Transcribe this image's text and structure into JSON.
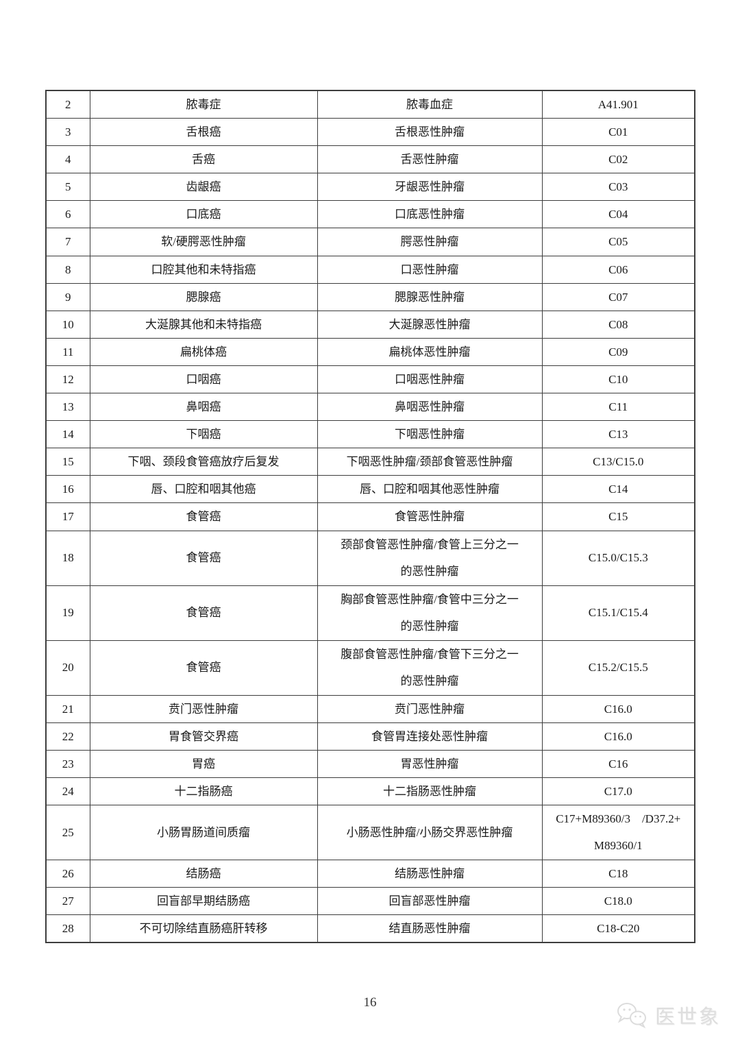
{
  "page": {
    "number": "16"
  },
  "watermark": {
    "text": "医世象",
    "icon": "wechat-chat-bubbles-icon"
  },
  "colors": {
    "table_border": "#3c3c3c",
    "text": "#1a1a1a",
    "watermark": "#dedede",
    "background": "#ffffff"
  },
  "table": {
    "columns": [
      "row-number",
      "disease-name",
      "standard-name",
      "icd-code"
    ],
    "rows": [
      {
        "no": "2",
        "name": "脓毒症",
        "standard": "脓毒血症",
        "code": "A41.901",
        "tall": false
      },
      {
        "no": "3",
        "name": "舌根癌",
        "standard": "舌根恶性肿瘤",
        "code": "C01",
        "tall": false
      },
      {
        "no": "4",
        "name": "舌癌",
        "standard": "舌恶性肿瘤",
        "code": "C02",
        "tall": false
      },
      {
        "no": "5",
        "name": "齿龈癌",
        "standard": "牙龈恶性肿瘤",
        "code": "C03",
        "tall": false
      },
      {
        "no": "6",
        "name": "口底癌",
        "standard": "口底恶性肿瘤",
        "code": "C04",
        "tall": false
      },
      {
        "no": "7",
        "name": "软/硬腭恶性肿瘤",
        "standard": "腭恶性肿瘤",
        "code": "C05",
        "tall": false
      },
      {
        "no": "8",
        "name": "口腔其他和未特指癌",
        "standard": "口恶性肿瘤",
        "code": "C06",
        "tall": false
      },
      {
        "no": "9",
        "name": "腮腺癌",
        "standard": "腮腺恶性肿瘤",
        "code": "C07",
        "tall": false
      },
      {
        "no": "10",
        "name": "大涎腺其他和未特指癌",
        "standard": "大涎腺恶性肿瘤",
        "code": "C08",
        "tall": false
      },
      {
        "no": "11",
        "name": "扁桃体癌",
        "standard": "扁桃体恶性肿瘤",
        "code": "C09",
        "tall": false
      },
      {
        "no": "12",
        "name": "口咽癌",
        "standard": "口咽恶性肿瘤",
        "code": "C10",
        "tall": false
      },
      {
        "no": "13",
        "name": "鼻咽癌",
        "standard": "鼻咽恶性肿瘤",
        "code": "C11",
        "tall": false
      },
      {
        "no": "14",
        "name": "下咽癌",
        "standard": "下咽恶性肿瘤",
        "code": "C13",
        "tall": false
      },
      {
        "no": "15",
        "name": "下咽、颈段食管癌放疗后复发",
        "standard": "下咽恶性肿瘤/颈部食管恶性肿瘤",
        "code": "C13/C15.0",
        "tall": false
      },
      {
        "no": "16",
        "name": "唇、口腔和咽其他癌",
        "standard": "唇、口腔和咽其他恶性肿瘤",
        "code": "C14",
        "tall": false
      },
      {
        "no": "17",
        "name": "食管癌",
        "standard": "食管恶性肿瘤",
        "code": "C15",
        "tall": false
      },
      {
        "no": "18",
        "name": "食管癌",
        "standard": "颈部食管恶性肿瘤/食管上三分之一\n的恶性肿瘤",
        "code": "C15.0/C15.3",
        "tall": true
      },
      {
        "no": "19",
        "name": "食管癌",
        "standard": "胸部食管恶性肿瘤/食管中三分之一\n的恶性肿瘤",
        "code": "C15.1/C15.4",
        "tall": true
      },
      {
        "no": "20",
        "name": "食管癌",
        "standard": "腹部食管恶性肿瘤/食管下三分之一\n的恶性肿瘤",
        "code": "C15.2/C15.5",
        "tall": true
      },
      {
        "no": "21",
        "name": "贲门恶性肿瘤",
        "standard": "贲门恶性肿瘤",
        "code": "C16.0",
        "tall": false
      },
      {
        "no": "22",
        "name": "胃食管交界癌",
        "standard": "食管胃连接处恶性肿瘤",
        "code": "C16.0",
        "tall": false
      },
      {
        "no": "23",
        "name": "胃癌",
        "standard": "胃恶性肿瘤",
        "code": "C16",
        "tall": false
      },
      {
        "no": "24",
        "name": "十二指肠癌",
        "standard": "十二指肠恶性肿瘤",
        "code": "C17.0",
        "tall": false
      },
      {
        "no": "25",
        "name": "小肠胃肠道间质瘤",
        "standard": "小肠恶性肿瘤/小肠交界恶性肿瘤",
        "code": "C17+M89360/3　/D37.2+\nM89360/1",
        "tall": true
      },
      {
        "no": "26",
        "name": "结肠癌",
        "standard": "结肠恶性肿瘤",
        "code": "C18",
        "tall": false
      },
      {
        "no": "27",
        "name": "回盲部早期结肠癌",
        "standard": "回盲部恶性肿瘤",
        "code": "C18.0",
        "tall": false
      },
      {
        "no": "28",
        "name": "不可切除结直肠癌肝转移",
        "standard": "结直肠恶性肿瘤",
        "code": "C18-C20",
        "tall": false
      }
    ]
  }
}
